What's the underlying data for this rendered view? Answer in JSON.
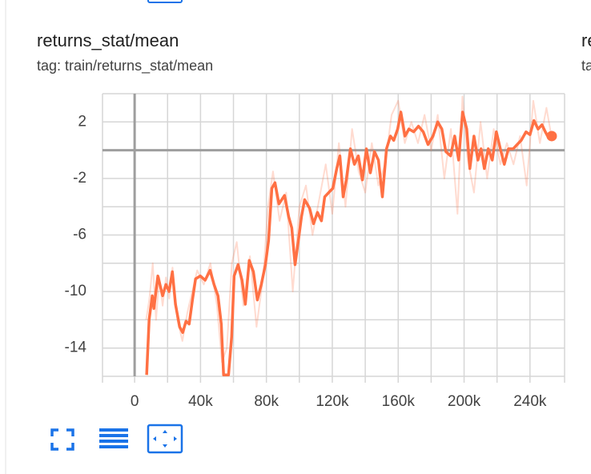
{
  "card": {
    "title": "returns_stat/mean",
    "tag": "tag: train/returns_stat/mean"
  },
  "next_card": {
    "title": "re",
    "tag": "ta"
  },
  "chart_data": {
    "type": "line",
    "xlim": [
      -19500,
      261000
    ],
    "ylim": [
      -16,
      4
    ],
    "xticks": [
      0,
      {
        "value": 40000,
        "label": "40k"
      },
      {
        "value": 80000,
        "label": "80k"
      },
      {
        "value": 120000,
        "label": "120k"
      },
      {
        "value": 160000,
        "label": "160k"
      },
      {
        "value": 200000,
        "label": "200k"
      },
      {
        "value": 240000,
        "label": "240k"
      }
    ],
    "yticks": [
      2,
      -2,
      -6,
      -10,
      -14
    ],
    "xgrid": [
      -19500,
      0,
      20000,
      40000,
      60000,
      80000,
      100000,
      120000,
      140000,
      160000,
      180000,
      200000,
      220000,
      240000,
      261000
    ],
    "ygrid": [
      4,
      2,
      0,
      -2,
      -4,
      -6,
      -8,
      -10,
      -12,
      -14,
      -16
    ],
    "zero_lines": true,
    "series": [
      {
        "color": "#ff7043",
        "opacity": 0.25,
        "width": 2,
        "x": [
          7000,
          9000,
          11000,
          13000,
          15000,
          17000,
          19000,
          21000,
          23000,
          26000,
          29000,
          32000,
          35000,
          38000,
          42000,
          46000,
          50000,
          53000,
          56000,
          59000,
          62000,
          66000,
          70000,
          74000,
          78000,
          81000,
          84000,
          88000,
          92000,
          96000,
          100000,
          104000,
          108000,
          112000,
          116000,
          120000,
          124000,
          128000,
          132000,
          136000,
          140000,
          144000,
          148000,
          152000,
          156000,
          160000,
          164000,
          168000,
          172000,
          176000,
          180000,
          184000,
          188000,
          192000,
          196000,
          199000,
          202000,
          206000,
          210000,
          214000,
          218000,
          222000,
          226000,
          230000,
          234000,
          238000,
          242000,
          246000,
          250000,
          253000
        ],
        "values": [
          -12,
          -10.5,
          -8,
          -12,
          -9,
          -11,
          -9,
          -10.5,
          -8.3,
          -12,
          -13.5,
          -11.5,
          -10,
          -8.5,
          -9.5,
          -8,
          -11,
          -15,
          -14,
          -8,
          -6.5,
          -11,
          -7.5,
          -12.5,
          -9,
          -4,
          -1.5,
          -5,
          -3,
          -10,
          -4,
          -2.5,
          -6,
          -3.5,
          -1,
          -4.5,
          0.5,
          -4,
          1.5,
          -1.5,
          -3,
          0.5,
          -2.5,
          -1,
          2.5,
          3.5,
          0.5,
          2,
          0.5,
          2.5,
          0,
          2.5,
          -2,
          1.5,
          -4.5,
          3.8,
          -0.5,
          -3,
          2,
          -2,
          1.5,
          -1,
          0.5,
          -1,
          1,
          -2.5,
          3.5,
          0.5,
          3,
          1
        ]
      },
      {
        "color": "#ff7043",
        "opacity": 1,
        "width": 3.5,
        "end_dot": true,
        "x": [
          7300,
          8800,
          10700,
          11700,
          14100,
          17000,
          19000,
          20900,
          22900,
          24800,
          27300,
          29200,
          31200,
          33100,
          35100,
          37000,
          39900,
          42800,
          45800,
          48200,
          50600,
          52600,
          54000,
          57000,
          58900,
          60400,
          62800,
          65200,
          67200,
          69600,
          72100,
          74500,
          76900,
          79400,
          81300,
          83300,
          85200,
          87600,
          91000,
          93500,
          95400,
          97400,
          99400,
          101300,
          103200,
          106200,
          108600,
          111000,
          113400,
          115400,
          117800,
          120300,
          122700,
          124600,
          126600,
          128500,
          131000,
          133400,
          135800,
          138300,
          140700,
          143100,
          145600,
          148000,
          150400,
          152900,
          155300,
          157300,
          159700,
          161600,
          164100,
          166500,
          169400,
          172300,
          175200,
          178100,
          181100,
          184000,
          186500,
          188900,
          191800,
          194300,
          196700,
          199100,
          201600,
          203500,
          206000,
          208400,
          210300,
          212300,
          214700,
          217100,
          219600,
          222000,
          224400,
          226900,
          229800,
          232200,
          234700,
          237600,
          240000,
          242400,
          244900,
          247300,
          249300,
          251200,
          253200
        ],
        "values": [
          -15.9,
          -12,
          -10.3,
          -11.2,
          -8.9,
          -10.3,
          -9.5,
          -10,
          -8.6,
          -10.9,
          -12.5,
          -12.9,
          -12.1,
          -12.3,
          -10.6,
          -9.1,
          -8.9,
          -9.2,
          -8.5,
          -9.5,
          -10.3,
          -12.3,
          -15.9,
          -15.9,
          -13.2,
          -8.9,
          -8.1,
          -9.2,
          -10.9,
          -7.8,
          -8.6,
          -10.6,
          -9.5,
          -8.1,
          -6.4,
          -2.7,
          -2.3,
          -3.8,
          -3.2,
          -4.7,
          -5.5,
          -8.1,
          -6.4,
          -4.7,
          -3.5,
          -4.1,
          -5.2,
          -4.4,
          -5,
          -3.3,
          -3,
          -2.7,
          -1.3,
          -0.4,
          -3.3,
          -2.1,
          0.1,
          -1,
          -0.4,
          -2.1,
          0.1,
          -1.6,
          -0.1,
          -0.7,
          -3.3,
          0.1,
          1,
          0.7,
          1.5,
          2.7,
          1,
          1.5,
          1.3,
          1.7,
          1.3,
          0.4,
          1,
          2,
          1.5,
          -0.1,
          -0.4,
          1,
          -0.7,
          2.7,
          1.5,
          -1.3,
          1,
          -0.7,
          0.1,
          -1.3,
          0.1,
          -0.7,
          1.3,
          0.1,
          -1,
          0.1,
          0.1,
          0.4,
          0.7,
          1.3,
          1.1,
          2.1,
          1.5,
          1.8,
          1.3,
          0.9,
          1
        ]
      }
    ]
  }
}
